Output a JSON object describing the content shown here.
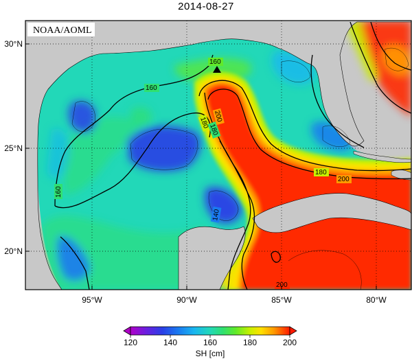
{
  "title": "2014-08-27",
  "credit": "NOAA/AOML",
  "lat_labels": [
    "30°N",
    "25°N",
    "20°N"
  ],
  "lon_labels": [
    "95°W",
    "90°W",
    "85°W",
    "80°W"
  ],
  "contour_labels": [
    "160",
    "160",
    "180",
    "180",
    "200",
    "180",
    "200",
    "160",
    "140",
    "200"
  ],
  "colorbar": {
    "label": "SH [cm]",
    "ticks": [
      "120",
      "140",
      "160",
      "180",
      "200"
    ],
    "colors": [
      "#b000c8",
      "#6a1fe0",
      "#2a3fe6",
      "#1a7af0",
      "#19b6f0",
      "#22d8b8",
      "#30e070",
      "#60ea2a",
      "#c8f000",
      "#ffe000",
      "#ff9a00",
      "#ff3a00",
      "#ff1a00"
    ]
  },
  "colors": {
    "land": "#c8c8c8",
    "ocean_mid": "#22d8b8",
    "loop_current": "#ff2a00"
  },
  "marker": "station-triangle-icon"
}
